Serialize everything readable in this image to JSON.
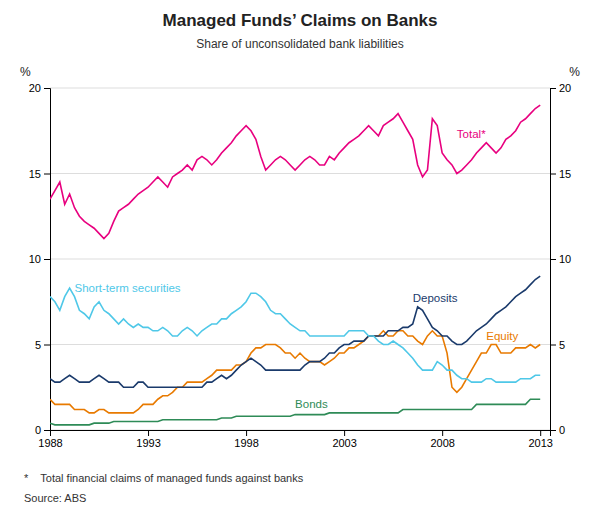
{
  "chart_data": {
    "type": "line",
    "title": "Managed Funds’ Claims on Banks",
    "subtitle": "Share of unconsolidated bank liabilities",
    "ylabel": "%",
    "y2label": "%",
    "annotations": [
      "*    Total financial claims of managed funds against banks",
      "Source: ABS"
    ],
    "xlim": [
      1988,
      2013.5
    ],
    "xticks": [
      1988,
      1993,
      1998,
      2003,
      2008,
      2013
    ],
    "ylim": [
      0,
      20
    ],
    "yticks": [
      0,
      5,
      10,
      15,
      20
    ],
    "y2lim": [
      0,
      20
    ],
    "y2ticks": [
      0,
      5,
      10,
      15,
      20
    ],
    "grid": true,
    "x": [
      1988.0,
      1988.25,
      1988.5,
      1988.75,
      1989.0,
      1989.25,
      1989.5,
      1989.75,
      1990.0,
      1990.25,
      1990.5,
      1990.75,
      1991.0,
      1991.25,
      1991.5,
      1991.75,
      1992.0,
      1992.25,
      1992.5,
      1992.75,
      1993.0,
      1993.25,
      1993.5,
      1993.75,
      1994.0,
      1994.25,
      1994.5,
      1994.75,
      1995.0,
      1995.25,
      1995.5,
      1995.75,
      1996.0,
      1996.25,
      1996.5,
      1996.75,
      1997.0,
      1997.25,
      1997.5,
      1997.75,
      1998.0,
      1998.25,
      1998.5,
      1998.75,
      1999.0,
      1999.25,
      1999.5,
      1999.75,
      2000.0,
      2000.25,
      2000.5,
      2000.75,
      2001.0,
      2001.25,
      2001.5,
      2001.75,
      2002.0,
      2002.25,
      2002.5,
      2002.75,
      2003.0,
      2003.25,
      2003.5,
      2003.75,
      2004.0,
      2004.25,
      2004.5,
      2004.75,
      2005.0,
      2005.25,
      2005.5,
      2005.75,
      2006.0,
      2006.25,
      2006.5,
      2006.75,
      2007.0,
      2007.25,
      2007.5,
      2007.75,
      2008.0,
      2008.25,
      2008.5,
      2008.75,
      2009.0,
      2009.25,
      2009.5,
      2009.75,
      2010.0,
      2010.25,
      2010.5,
      2010.75,
      2011.0,
      2011.25,
      2011.5,
      2011.75,
      2012.0,
      2012.25,
      2012.5,
      2012.75,
      2013.0
    ],
    "series": [
      {
        "name": "Total*",
        "color": "#E8007F",
        "values": [
          13.5,
          14.0,
          14.5,
          13.2,
          13.8,
          13.0,
          12.5,
          12.2,
          12.0,
          11.8,
          11.5,
          11.2,
          11.5,
          12.2,
          12.8,
          13.0,
          13.2,
          13.5,
          13.8,
          14.0,
          14.2,
          14.5,
          14.8,
          14.5,
          14.2,
          14.8,
          15.0,
          15.2,
          15.5,
          15.2,
          15.8,
          16.0,
          15.8,
          15.5,
          15.8,
          16.2,
          16.5,
          16.8,
          17.2,
          17.5,
          17.8,
          17.5,
          17.0,
          16.0,
          15.2,
          15.5,
          15.8,
          16.0,
          15.8,
          15.5,
          15.2,
          15.5,
          15.8,
          16.0,
          15.8,
          15.5,
          15.5,
          16.0,
          15.8,
          16.2,
          16.5,
          16.8,
          17.0,
          17.2,
          17.5,
          17.8,
          17.5,
          17.2,
          17.8,
          18.0,
          18.2,
          18.5,
          18.0,
          17.5,
          17.0,
          15.5,
          14.8,
          15.2,
          18.2,
          17.8,
          16.2,
          15.8,
          15.5,
          15.0,
          15.2,
          15.5,
          15.8,
          16.2,
          16.5,
          16.8,
          16.5,
          16.2,
          16.5,
          17.0,
          17.2,
          17.5,
          18.0,
          18.2,
          18.5,
          18.8,
          19.0
        ]
      },
      {
        "name": "Short-term securities",
        "color": "#4FC8E8",
        "values": [
          7.8,
          7.5,
          7.0,
          7.8,
          8.3,
          7.8,
          7.0,
          6.8,
          6.5,
          7.2,
          7.5,
          7.0,
          6.8,
          6.5,
          6.2,
          6.5,
          6.2,
          6.0,
          6.2,
          6.0,
          6.0,
          5.8,
          5.8,
          6.0,
          5.8,
          5.5,
          5.5,
          5.8,
          6.0,
          5.8,
          5.5,
          5.8,
          6.0,
          6.2,
          6.2,
          6.5,
          6.5,
          6.8,
          7.0,
          7.2,
          7.5,
          8.0,
          8.0,
          7.8,
          7.5,
          7.0,
          6.8,
          6.8,
          6.5,
          6.2,
          6.0,
          5.8,
          5.8,
          5.5,
          5.5,
          5.5,
          5.5,
          5.5,
          5.5,
          5.5,
          5.5,
          5.8,
          5.8,
          5.8,
          5.8,
          5.5,
          5.5,
          5.2,
          5.0,
          5.0,
          5.2,
          5.0,
          4.8,
          4.5,
          4.2,
          3.8,
          3.5,
          3.5,
          3.5,
          4.0,
          3.8,
          3.5,
          3.5,
          3.2,
          3.0,
          3.0,
          2.8,
          2.8,
          2.8,
          3.0,
          3.0,
          2.8,
          2.8,
          2.8,
          2.8,
          2.8,
          3.0,
          3.0,
          3.0,
          3.2,
          3.2
        ]
      },
      {
        "name": "Deposits",
        "color": "#1A3A6B",
        "values": [
          3.0,
          2.8,
          2.8,
          3.0,
          3.2,
          3.0,
          2.8,
          2.8,
          2.8,
          3.0,
          3.2,
          3.0,
          2.8,
          2.8,
          2.8,
          2.5,
          2.5,
          2.5,
          2.8,
          2.8,
          2.5,
          2.5,
          2.5,
          2.5,
          2.5,
          2.5,
          2.5,
          2.5,
          2.5,
          2.5,
          2.5,
          2.5,
          2.8,
          2.8,
          3.0,
          3.2,
          3.0,
          3.2,
          3.5,
          3.8,
          4.0,
          4.2,
          4.0,
          3.8,
          3.5,
          3.5,
          3.5,
          3.5,
          3.5,
          3.5,
          3.5,
          3.5,
          3.8,
          4.0,
          4.0,
          4.0,
          4.2,
          4.5,
          4.5,
          4.8,
          5.0,
          5.0,
          5.2,
          5.2,
          5.2,
          5.5,
          5.5,
          5.5,
          5.5,
          5.8,
          5.8,
          5.8,
          6.0,
          6.0,
          6.2,
          7.2,
          7.0,
          6.5,
          6.0,
          5.8,
          5.5,
          5.5,
          5.2,
          5.0,
          5.0,
          5.2,
          5.5,
          5.8,
          6.0,
          6.2,
          6.5,
          6.8,
          7.0,
          7.2,
          7.5,
          7.8,
          8.0,
          8.2,
          8.5,
          8.8,
          9.0
        ]
      },
      {
        "name": "Equity",
        "color": "#E87A00",
        "values": [
          1.8,
          1.5,
          1.5,
          1.5,
          1.5,
          1.2,
          1.2,
          1.2,
          1.0,
          1.0,
          1.2,
          1.2,
          1.0,
          1.0,
          1.0,
          1.0,
          1.0,
          1.0,
          1.2,
          1.5,
          1.5,
          1.5,
          1.8,
          2.0,
          2.0,
          2.2,
          2.5,
          2.5,
          2.8,
          2.8,
          2.8,
          2.8,
          3.0,
          3.2,
          3.5,
          3.5,
          3.5,
          3.5,
          3.8,
          3.8,
          4.0,
          4.5,
          4.8,
          4.8,
          5.0,
          5.0,
          5.0,
          4.8,
          4.5,
          4.5,
          4.2,
          4.5,
          4.2,
          4.0,
          4.0,
          4.0,
          3.8,
          4.0,
          4.2,
          4.5,
          4.5,
          4.8,
          4.8,
          5.0,
          5.2,
          5.5,
          5.5,
          5.5,
          5.8,
          5.5,
          5.5,
          5.8,
          5.8,
          5.5,
          5.5,
          5.2,
          5.0,
          5.5,
          5.8,
          5.5,
          5.5,
          4.5,
          2.5,
          2.2,
          2.5,
          3.0,
          3.5,
          4.0,
          4.5,
          4.5,
          5.0,
          5.0,
          4.5,
          4.5,
          4.5,
          4.8,
          4.8,
          4.8,
          5.0,
          4.8,
          5.0
        ]
      },
      {
        "name": "Bonds",
        "color": "#2E8B57",
        "values": [
          0.4,
          0.3,
          0.3,
          0.3,
          0.3,
          0.3,
          0.3,
          0.3,
          0.3,
          0.4,
          0.4,
          0.4,
          0.4,
          0.5,
          0.5,
          0.5,
          0.5,
          0.5,
          0.5,
          0.5,
          0.5,
          0.5,
          0.5,
          0.6,
          0.6,
          0.6,
          0.6,
          0.6,
          0.6,
          0.6,
          0.6,
          0.6,
          0.6,
          0.6,
          0.6,
          0.7,
          0.7,
          0.7,
          0.8,
          0.8,
          0.8,
          0.8,
          0.8,
          0.8,
          0.8,
          0.8,
          0.8,
          0.8,
          0.8,
          0.8,
          0.9,
          0.9,
          0.9,
          0.9,
          0.9,
          0.9,
          0.9,
          1.0,
          1.0,
          1.0,
          1.0,
          1.0,
          1.0,
          1.0,
          1.0,
          1.0,
          1.0,
          1.0,
          1.0,
          1.0,
          1.0,
          1.0,
          1.2,
          1.2,
          1.2,
          1.2,
          1.2,
          1.2,
          1.2,
          1.2,
          1.2,
          1.2,
          1.2,
          1.2,
          1.2,
          1.2,
          1.2,
          1.5,
          1.5,
          1.5,
          1.5,
          1.5,
          1.5,
          1.5,
          1.5,
          1.5,
          1.5,
          1.5,
          1.8,
          1.8,
          1.8
        ]
      }
    ]
  }
}
